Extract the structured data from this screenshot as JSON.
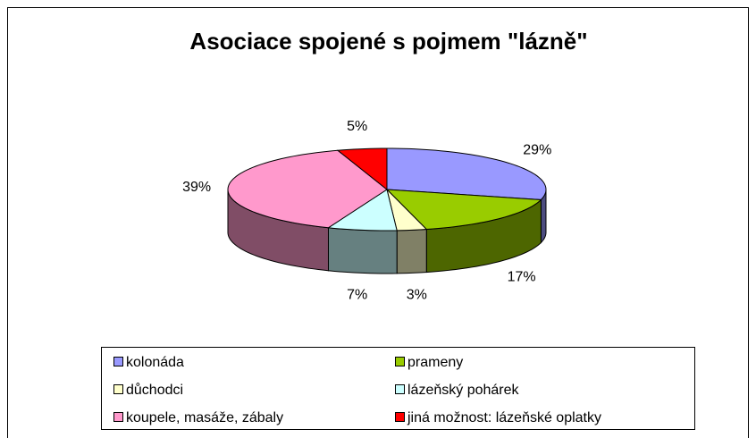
{
  "chart_data": {
    "type": "pie3d",
    "title": "Asociace spojené s pojmem \"lázně\"",
    "categories": [
      "kolonáda",
      "prameny",
      "důchodci",
      "lázeňský pohárek",
      "koupele, masáže, zábaly",
      "jiná možnost: lázeňské oplatky"
    ],
    "values": [
      29,
      17,
      3,
      7,
      39,
      5
    ],
    "value_labels": [
      "29%",
      "17%",
      "3%",
      "7%",
      "39%",
      "5%"
    ],
    "colors": [
      "#9999ff",
      "#99cc00",
      "#ffffcc",
      "#ccffff",
      "#ff99cc",
      "#ff0000"
    ],
    "legend": "bottom"
  }
}
